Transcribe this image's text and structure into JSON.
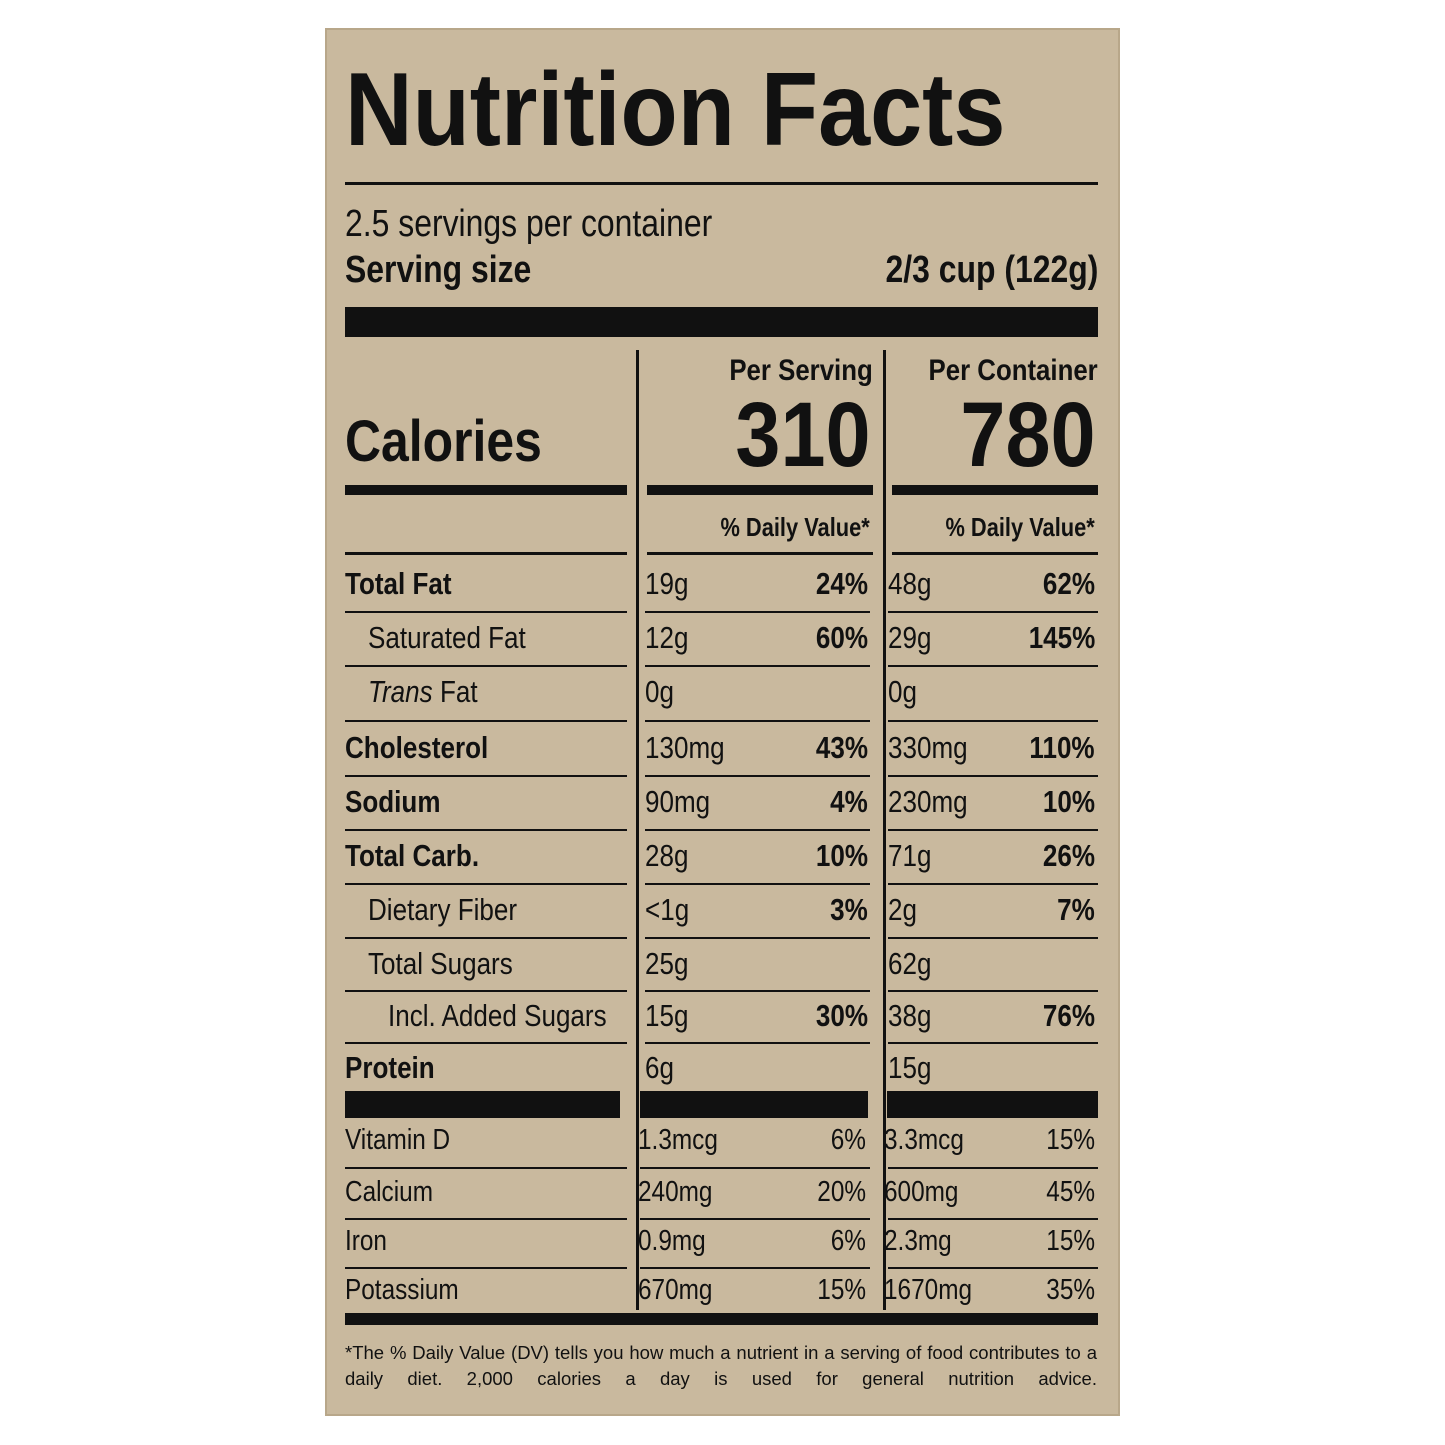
{
  "title": "Nutrition Facts",
  "servings_per_container": "2.5 servings per container",
  "serving_size": {
    "label": "Serving size",
    "value": "2/3 cup (122g)"
  },
  "columns": [
    "Per Serving",
    "Per Container"
  ],
  "calories": {
    "label": "Calories",
    "values": [
      "310",
      "780"
    ]
  },
  "daily_value_header": [
    "% Daily Value*",
    "% Daily Value*"
  ],
  "nutrients": [
    {
      "name": "Total Fat",
      "serving": "19g",
      "serving_dv": "24%",
      "container": "48g",
      "container_dv": "62%"
    },
    {
      "name": "Saturated Fat",
      "serving": "12g",
      "serving_dv": "60%",
      "container": "29g",
      "container_dv": "145%"
    },
    {
      "name_italic": "Trans",
      "name": "Fat",
      "serving": "0g",
      "serving_dv": null,
      "container": "0g",
      "container_dv": null
    },
    {
      "name": "Cholesterol",
      "serving": "130mg",
      "serving_dv": "43%",
      "container": "330mg",
      "container_dv": "110%"
    },
    {
      "name": "Sodium",
      "serving": "90mg",
      "serving_dv": "4%",
      "container": "230mg",
      "container_dv": "10%"
    },
    {
      "name": "Total Carb.",
      "serving": "28g",
      "serving_dv": "10%",
      "container": "71g",
      "container_dv": "26%"
    },
    {
      "name": "Dietary Fiber",
      "serving": "<1g",
      "serving_dv": "3%",
      "container": "2g",
      "container_dv": "7%"
    },
    {
      "name": "Total Sugars",
      "serving": "25g",
      "serving_dv": null,
      "container": "62g",
      "container_dv": null
    },
    {
      "name": "Incl. Added Sugars",
      "serving": "15g",
      "serving_dv": "30%",
      "container": "38g",
      "container_dv": "76%"
    },
    {
      "name": "Protein",
      "serving": "6g",
      "serving_dv": null,
      "container": "15g",
      "container_dv": null
    }
  ],
  "vitamins": [
    {
      "name": "Vitamin D",
      "serving": "1.3mcg",
      "serving_dv": "6%",
      "container": "3.3mcg",
      "container_dv": "15%"
    },
    {
      "name": "Calcium",
      "serving": "240mg",
      "serving_dv": "20%",
      "container": "600mg",
      "container_dv": "45%"
    },
    {
      "name": "Iron",
      "serving": "0.9mg",
      "serving_dv": "6%",
      "container": "2.3mg",
      "container_dv": "15%"
    },
    {
      "name": "Potassium",
      "serving": "670mg",
      "serving_dv": "15%",
      "container": "1670mg",
      "container_dv": "35%"
    }
  ],
  "footnote": "*The % Daily Value (DV) tells you how much a nutrient in a serving of food contributes to a daily diet. 2,000 calories a day is used for general nutrition advice."
}
